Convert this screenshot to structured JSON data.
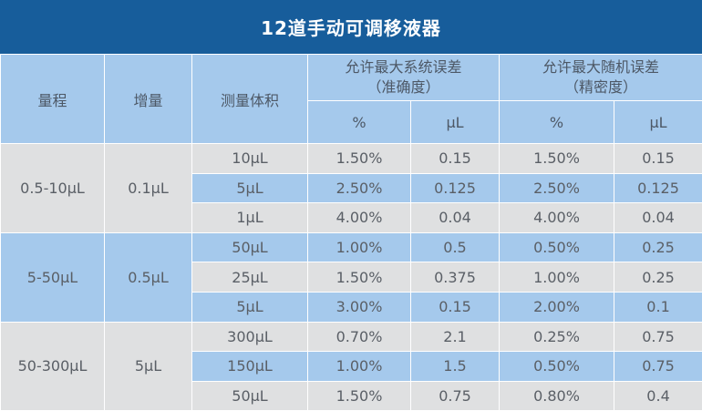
{
  "title": "12道手动可调移液器",
  "header": {
    "range": "量程",
    "increment": "增量",
    "volume": "测量体积",
    "systematic_l1": "允许最大系统误差",
    "systematic_l2": "（准确度）",
    "random_l1": "允许最大随机误差",
    "random_l2": "（精密度）",
    "pct1": "%",
    "ul1": "μL",
    "pct2": "%",
    "ul2": "μL"
  },
  "groups": [
    {
      "range": "0.5-10μL",
      "increment": "0.1μL",
      "rows": [
        {
          "volume": "10μL",
          "sys_pct": "1.50%",
          "sys_ul": "0.15",
          "rand_pct": "1.50%",
          "rand_ul": "0.15"
        },
        {
          "volume": "5μL",
          "sys_pct": "2.50%",
          "sys_ul": "0.125",
          "rand_pct": "2.50%",
          "rand_ul": "0.125"
        },
        {
          "volume": "1μL",
          "sys_pct": "4.00%",
          "sys_ul": "0.04",
          "rand_pct": "4.00%",
          "rand_ul": "0.04"
        }
      ]
    },
    {
      "range": "5-50μL",
      "increment": "0.5μL",
      "rows": [
        {
          "volume": "50μL",
          "sys_pct": "1.00%",
          "sys_ul": "0.5",
          "rand_pct": "0.50%",
          "rand_ul": "0.25"
        },
        {
          "volume": "25μL",
          "sys_pct": "1.50%",
          "sys_ul": "0.375",
          "rand_pct": "1.00%",
          "rand_ul": "0.25"
        },
        {
          "volume": "5μL",
          "sys_pct": "3.00%",
          "sys_ul": "0.15",
          "rand_pct": "2.00%",
          "rand_ul": "0.1"
        }
      ]
    },
    {
      "range": "50-300μL",
      "increment": "5μL",
      "rows": [
        {
          "volume": "300μL",
          "sys_pct": "0.70%",
          "sys_ul": "2.1",
          "rand_pct": "0.25%",
          "rand_ul": "0.75"
        },
        {
          "volume": "150μL",
          "sys_pct": "1.00%",
          "sys_ul": "1.5",
          "rand_pct": "0.50%",
          "rand_ul": "0.75"
        },
        {
          "volume": "50μL",
          "sys_pct": "1.50%",
          "sys_ul": "0.75",
          "rand_pct": "0.80%",
          "rand_ul": "0.4"
        }
      ]
    }
  ],
  "colors": {
    "title_bg": "#175d9b",
    "header_bg": "#a5c9ec",
    "gray_row": "#dfe0e1",
    "blue_row": "#a5c9ec"
  }
}
